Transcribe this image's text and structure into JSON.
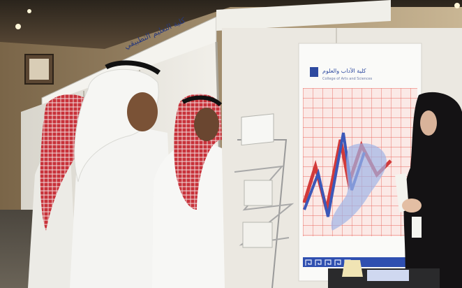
{
  "scene": {
    "type": "photograph",
    "subject": "Exhibition booth: students in white thobes and red-checked ghutras looking at a college display board, a woman in a black abaya explaining",
    "fascia_text": "كلية التعليم التطبيقي",
    "poster_logo_text": "كلية الآداب والعلوم",
    "poster_logo_subtext": "College of Arts and Sciences"
  },
  "colors": {
    "ceiling": "#4a3b2c",
    "wall": "#c9b694",
    "panel_white": "#ece9e2",
    "thobe": "#f4f4f2",
    "ghutra_red": "#c8323a",
    "abaya": "#141214",
    "poster_grid": "#e9675e",
    "poster_wave_blue": "#3c58b8",
    "poster_wave_red": "#d23a3a",
    "floor": "#6b6458"
  }
}
